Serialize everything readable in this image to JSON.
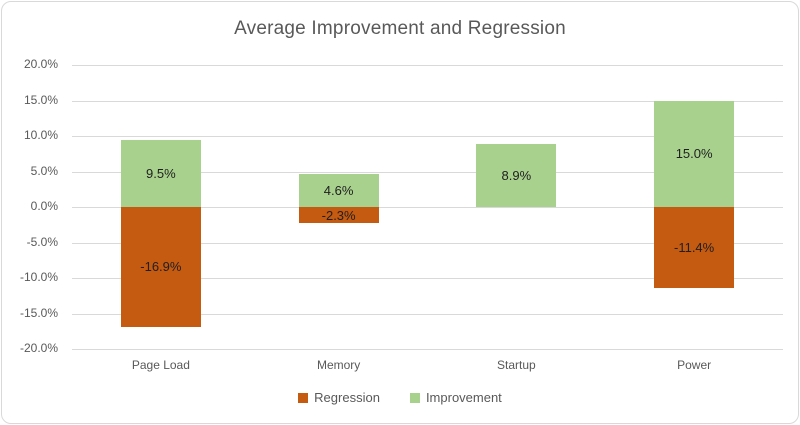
{
  "chart_data": {
    "type": "bar",
    "subtype": "diverging-stacked-column",
    "title": "Average Improvement and Regression",
    "categories": [
      "Page Load",
      "Memory",
      "Startup",
      "Power"
    ],
    "series": [
      {
        "name": "Regression",
        "color": "#C55A11",
        "values": [
          -16.9,
          -2.3,
          0,
          -11.4
        ]
      },
      {
        "name": "Improvement",
        "color": "#A9D18E",
        "values": [
          9.5,
          4.6,
          8.9,
          15.0
        ]
      }
    ],
    "data_labels": [
      "9.5%",
      "-16.9%",
      "4.6%",
      "-2.3%",
      "8.9%",
      "15.0%",
      "-11.4%"
    ],
    "ylabel": "",
    "xlabel": "",
    "ylim": [
      -20,
      20
    ],
    "ytick_step": 5,
    "ytick_labels": [
      "20.0%",
      "15.0%",
      "10.0%",
      "5.0%",
      "0.0%",
      "-5.0%",
      "-10.0%",
      "-15.0%",
      "-20.0%"
    ],
    "grid": true,
    "legend_position": "bottom"
  },
  "colors": {
    "frame_border": "#d9d9d9",
    "gridline": "#d9d9d9",
    "axis_text": "#595959",
    "title_text": "#595959",
    "data_label_text": "#1f1f1f",
    "background": "#ffffff"
  }
}
